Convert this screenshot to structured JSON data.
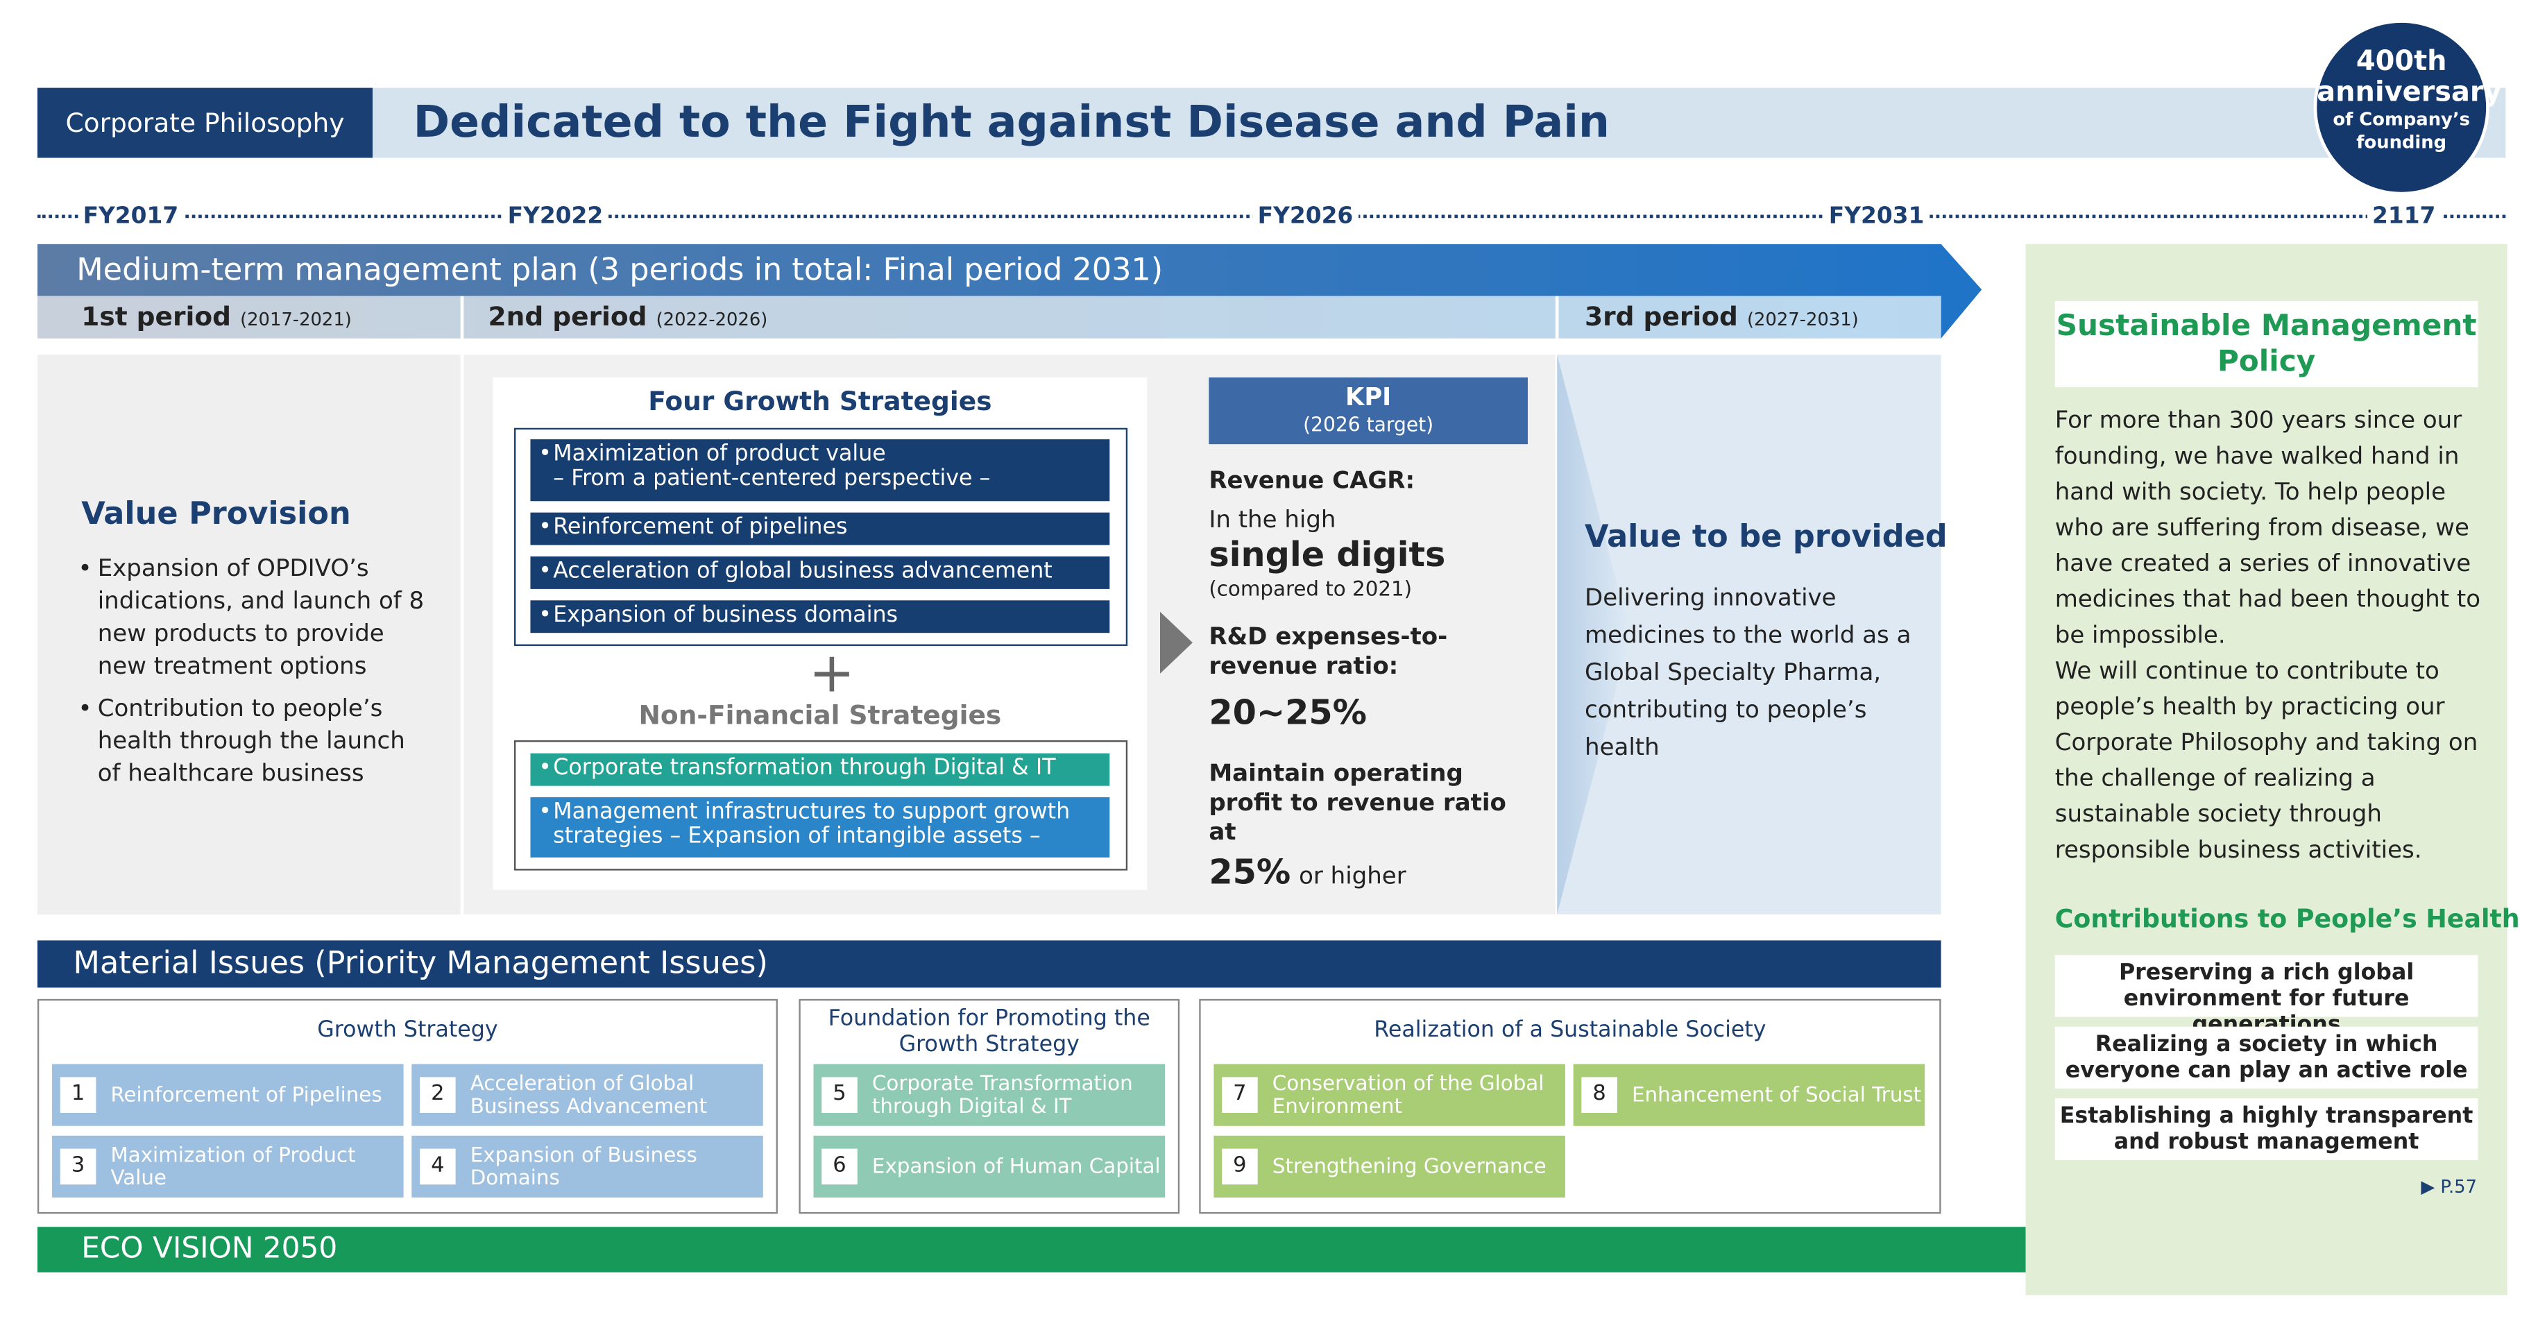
{
  "header": {
    "label": "Corporate Philosophy",
    "title": "Dedicated to the Fight against Disease and Pain"
  },
  "badge": {
    "line1": "400th",
    "line2": "anniversary",
    "line3": "of Company’s",
    "line4": "founding"
  },
  "timeline": [
    "FY2017",
    "FY2022",
    "FY2026",
    "FY2031",
    "2117"
  ],
  "plan": {
    "title": "Medium-term management plan (3 periods in total: Final period 2031)",
    "periods": [
      {
        "name": "1st period",
        "years": "(2017-2021)"
      },
      {
        "name": "2nd period",
        "years": "(2022-2026)"
      },
      {
        "name": "3rd period",
        "years": "(2027-2031)"
      }
    ]
  },
  "value_provision": {
    "title": "Value Provision",
    "bullets": [
      "Expansion of OPDIVO’s indications, and launch of 8 new products to provide new treatment options",
      "Contribution to people’s health through the launch of healthcare business"
    ]
  },
  "growth": {
    "title": "Four Growth Strategies",
    "items": [
      "Maximization of product value",
      "– From a patient-centered perspective –",
      "Reinforcement of pipelines",
      "Acceleration of global business advancement",
      "Expansion of business domains"
    ]
  },
  "non_financial": {
    "title": "Non-Financial Strategies",
    "items": [
      "Corporate transformation through Digital & IT",
      "Management infrastructures to support growth strategies – Expansion of intangible assets –"
    ]
  },
  "kpi": {
    "title": "KPI",
    "subtitle": "(2026 target)",
    "revenue_label": "Revenue CAGR:",
    "revenue_pre": "In the high",
    "revenue_value": "single digits",
    "revenue_note": "(compared to 2021)",
    "rd_label": "R&D expenses-to-revenue ratio:",
    "rd_value": "20~25%",
    "op_label": "Maintain operating profit to revenue ratio at",
    "op_value": "25%",
    "op_post": "or higher"
  },
  "value_provided": {
    "title": "Value to be provided",
    "text": "Delivering innovative medicines to the world as a Global Specialty Pharma, contributing to people’s health"
  },
  "material": {
    "title": "Material Issues (Priority Management Issues)",
    "groups": [
      {
        "title": "Growth Strategy",
        "items": [
          {
            "num": "1",
            "label": "Reinforcement of Pipelines"
          },
          {
            "num": "2",
            "label": "Acceleration of Global Business Advancement"
          },
          {
            "num": "3",
            "label": "Maximization of Product Value"
          },
          {
            "num": "4",
            "label": "Expansion of Business Domains"
          }
        ]
      },
      {
        "title": "Foundation for Promoting the Growth Strategy",
        "items": [
          {
            "num": "5",
            "label": "Corporate Transformation through Digital & IT"
          },
          {
            "num": "6",
            "label": "Expansion of Human Capital"
          }
        ]
      },
      {
        "title": "Realization of a Sustainable Society",
        "items": [
          {
            "num": "7",
            "label": "Conservation of the Global Environment"
          },
          {
            "num": "8",
            "label": "Enhancement of Social Trust"
          },
          {
            "num": "9",
            "label": "Strengthening Governance"
          }
        ]
      }
    ]
  },
  "eco": "ECO VISION 2050",
  "sustainable": {
    "title": "Sustainable Management Policy",
    "text": "For more than 300 years since our founding, we have walked hand in hand with society. To help people who are suffering from disease, we have created a series of innovative medicines that had been thought to be impossible.",
    "text2": "We will continue to contribute to people’s health by practicing our Corporate Philosophy and taking on the challenge of realizing a sustainable society through responsible business activities.",
    "contrib_title": "Contributions to People’s Health",
    "contribs": [
      "Preserving a rich global environment for future generations",
      "Realizing a society in which everyone can play an active role",
      "Establishing a highly transparent and robust management"
    ],
    "ref": "P.57"
  }
}
